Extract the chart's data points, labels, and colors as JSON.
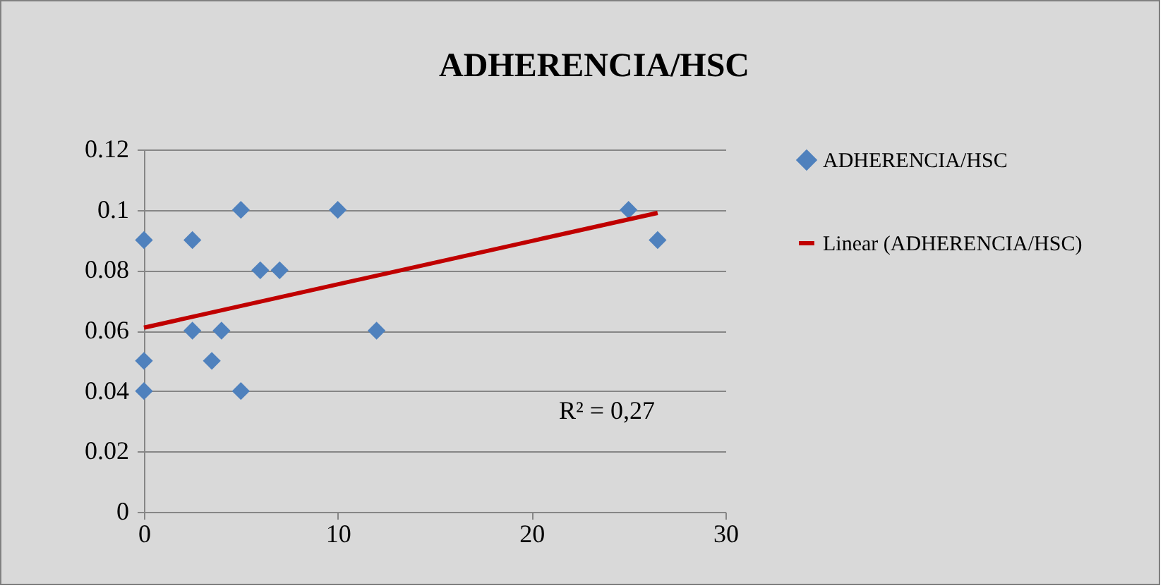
{
  "chart_data": {
    "type": "scatter",
    "title": "ADHERENCIA/HSC",
    "xlim": [
      0,
      30
    ],
    "xticks": [
      0,
      10,
      20,
      30
    ],
    "ylim": [
      0,
      0.12
    ],
    "yticks": [
      0,
      0.02,
      0.04,
      0.06,
      0.08,
      0.1,
      0.12
    ],
    "grid": "y",
    "legend": "right",
    "marker": "diamond",
    "annotations": [
      "R² = 0,27"
    ],
    "series": [
      {
        "name": "ADHERENCIA/HSC",
        "color": "#4f81bd",
        "x": [
          0,
          0,
          0,
          2.5,
          2.5,
          3.5,
          4,
          5,
          5,
          6,
          7,
          10,
          12,
          25,
          26.5
        ],
        "values": [
          0.09,
          0.05,
          0.04,
          0.09,
          0.06,
          0.05,
          0.06,
          0.1,
          0.04,
          0.08,
          0.08,
          0.1,
          0.06,
          0.1,
          0.09
        ]
      },
      {
        "name": "Linear (ADHERENCIA/HSC)",
        "type": "line",
        "marker": "none",
        "color": "#c00000",
        "x": [
          0,
          26.5
        ],
        "values": [
          0.061,
          0.099
        ]
      }
    ]
  }
}
